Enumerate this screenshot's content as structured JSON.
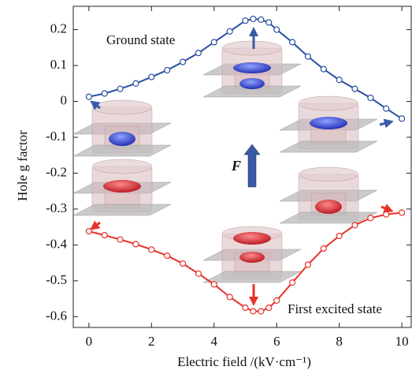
{
  "chart_data": {
    "type": "line",
    "xlabel": "Electric field /(kV·cm⁻¹)",
    "ylabel": "Hole g factor",
    "annotation": "F",
    "x": [
      0,
      0.5,
      1,
      1.5,
      2,
      2.5,
      3,
      3.5,
      4,
      4.5,
      5,
      5.25,
      5.5,
      5.75,
      6,
      6.5,
      7,
      7.5,
      8,
      8.5,
      9,
      9.5,
      10
    ],
    "series": [
      {
        "name": "Ground state",
        "color": "#2b4ea2",
        "values": [
          0.013,
          0.022,
          0.035,
          0.05,
          0.068,
          0.087,
          0.11,
          0.135,
          0.165,
          0.195,
          0.225,
          0.23,
          0.228,
          0.22,
          0.2,
          0.165,
          0.125,
          0.09,
          0.06,
          0.035,
          0.01,
          -0.02,
          -0.048
        ]
      },
      {
        "name": "First excited state",
        "color": "#e8312a",
        "values": [
          -0.362,
          -0.373,
          -0.385,
          -0.398,
          -0.413,
          -0.43,
          -0.452,
          -0.48,
          -0.51,
          -0.545,
          -0.575,
          -0.585,
          -0.585,
          -0.575,
          -0.555,
          -0.505,
          -0.455,
          -0.41,
          -0.375,
          -0.345,
          -0.325,
          -0.315,
          -0.31
        ]
      }
    ],
    "xlim": [
      -0.5,
      10.3
    ],
    "xticks": [
      0,
      2,
      4,
      6,
      8,
      10
    ],
    "ylim": [
      -0.63,
      0.265
    ],
    "yticks": [
      0.2,
      0.1,
      0,
      -0.1,
      -0.2,
      -0.3,
      -0.4,
      -0.5,
      -0.6
    ],
    "grid": false
  }
}
